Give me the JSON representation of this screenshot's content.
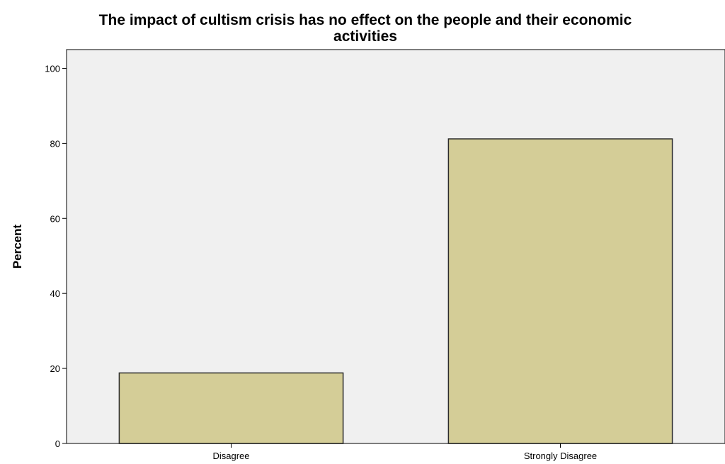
{
  "chart_data": {
    "type": "bar",
    "title_lines": [
      "The impact of cultism crisis has no effect on the people and their economic",
      "activities"
    ],
    "xlabel": "",
    "ylabel": "Percent",
    "categories": [
      "Disagree",
      "Strongly Disagree"
    ],
    "values": [
      18.8,
      81.2
    ],
    "ylim": [
      0,
      105
    ],
    "yticks": [
      0,
      20,
      40,
      60,
      80,
      100
    ],
    "grid": false,
    "legend": "none",
    "colors": {
      "bar_fill": "#d4cd97",
      "bar_stroke": "#2b2b2b",
      "plot_background": "#f0f0f0",
      "axis": "#000000"
    }
  }
}
